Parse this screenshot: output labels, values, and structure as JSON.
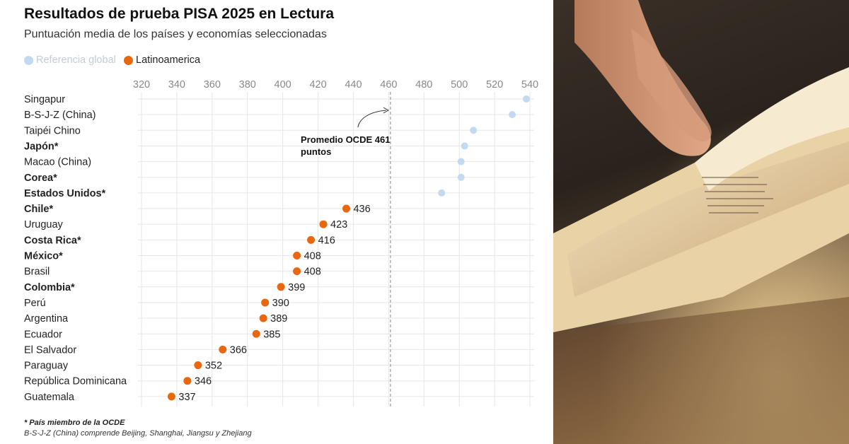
{
  "header": {
    "title": "Resultados de prueba PISA 2025 en Lectura",
    "subtitle": "Puntuación media de los países y economías seleccionadas"
  },
  "legend": {
    "global_label": "Referencia global",
    "latam_label": "Latinoamerica"
  },
  "colors": {
    "global": "#c3d9f0",
    "latam": "#e8670f",
    "grid": "#e6e6e6",
    "axis_text": "#888888",
    "reference_line": "#999999"
  },
  "reference": {
    "label_line1": "Promedio OCDE 461",
    "label_line2": "puntos",
    "value": 461
  },
  "footer": {
    "footnote": "* País miembro de la OCDE",
    "note": "B-S-J-Z (China) comprende Beijing, Shanghai, Jiangsu y Zhejiang"
  },
  "photo": {
    "description_icon": "open-book-photo"
  },
  "chart_data": {
    "type": "scatter",
    "title": "Resultados de prueba PISA 2025 en Lectura",
    "subtitle": "Puntuación media de los países y economías seleccionadas",
    "xlim": [
      320,
      540
    ],
    "x_ticks": [
      320,
      340,
      360,
      380,
      400,
      420,
      440,
      460,
      480,
      500,
      520,
      540
    ],
    "grid": true,
    "legend_placement": "top-left",
    "points": [
      {
        "country": "Singapur",
        "value": 538,
        "group": "global",
        "oecd": false
      },
      {
        "country": "B-S-J-Z (China)",
        "value": 530,
        "group": "global",
        "oecd": false
      },
      {
        "country": "Taipéi Chino",
        "value": 508,
        "group": "global",
        "oecd": false
      },
      {
        "country": "Japón*",
        "value": 503,
        "group": "global",
        "oecd": true
      },
      {
        "country": "Macao (China)",
        "value": 501,
        "group": "global",
        "oecd": false
      },
      {
        "country": "Corea*",
        "value": 501,
        "group": "global",
        "oecd": true
      },
      {
        "country": "Estados Unidos*",
        "value": 490,
        "group": "global",
        "oecd": true
      },
      {
        "country": "Chile*",
        "value": 436,
        "group": "latam",
        "oecd": true,
        "label": "436"
      },
      {
        "country": "Uruguay",
        "value": 423,
        "group": "latam",
        "oecd": false,
        "label": "423"
      },
      {
        "country": "Costa Rica*",
        "value": 416,
        "group": "latam",
        "oecd": true,
        "label": "416"
      },
      {
        "country": "México*",
        "value": 408,
        "group": "latam",
        "oecd": true,
        "label": "408"
      },
      {
        "country": "Brasil",
        "value": 408,
        "group": "latam",
        "oecd": false,
        "label": "408"
      },
      {
        "country": "Colombia*",
        "value": 399,
        "group": "latam",
        "oecd": true,
        "label": "399"
      },
      {
        "country": "Perú",
        "value": 390,
        "group": "latam",
        "oecd": false,
        "label": "390"
      },
      {
        "country": "Argentina",
        "value": 389,
        "group": "latam",
        "oecd": false,
        "label": "389"
      },
      {
        "country": "Ecuador",
        "value": 385,
        "group": "latam",
        "oecd": false,
        "label": "385"
      },
      {
        "country": "El Salvador",
        "value": 366,
        "group": "latam",
        "oecd": false,
        "label": "366"
      },
      {
        "country": "Paraguay",
        "value": 352,
        "group": "latam",
        "oecd": false,
        "label": "352"
      },
      {
        "country": "República Dominicana",
        "value": 346,
        "group": "latam",
        "oecd": false,
        "label": "346"
      },
      {
        "country": "Guatemala",
        "value": 337,
        "group": "latam",
        "oecd": false,
        "label": "337"
      }
    ]
  }
}
